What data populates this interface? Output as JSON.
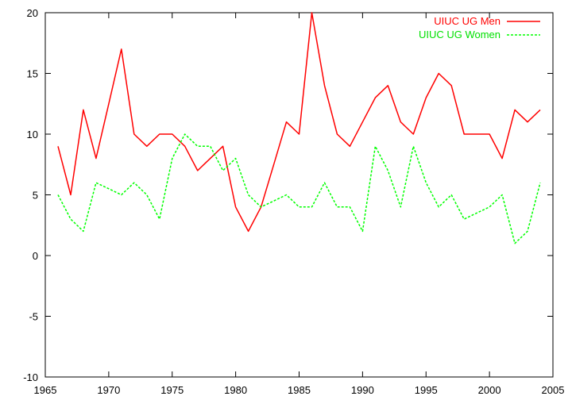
{
  "chart_data": {
    "type": "line",
    "title": "",
    "xlabel": "",
    "ylabel": "",
    "xlim": [
      1965,
      2005
    ],
    "ylim": [
      -10,
      20
    ],
    "x_ticks": [
      "1965",
      "1970",
      "1975",
      "1980",
      "1985",
      "1990",
      "1995",
      "2000",
      "2005"
    ],
    "y_ticks": [
      "20",
      "15",
      "10",
      "5",
      "0",
      "-5",
      "-10"
    ],
    "grid": false,
    "legend_position": "top-right",
    "x": [
      1966,
      1967,
      1968,
      1969,
      1970,
      1971,
      1972,
      1973,
      1974,
      1975,
      1976,
      1977,
      1978,
      1979,
      1980,
      1981,
      1982,
      1983,
      1984,
      1985,
      1986,
      1987,
      1988,
      1989,
      1990,
      1991,
      1992,
      1993,
      1994,
      1995,
      1996,
      1997,
      1998,
      1999,
      2000,
      2001,
      2002,
      2003,
      2004
    ],
    "series": [
      {
        "name": "UIUC UG Men",
        "color": "#ff0000",
        "dash": "solid",
        "values": [
          9,
          5,
          12,
          8,
          12.5,
          17,
          10,
          9,
          10,
          10,
          9,
          7,
          8,
          9,
          4,
          2,
          4,
          7.5,
          11,
          10,
          20,
          14,
          10,
          9,
          11,
          13,
          14,
          11,
          10,
          13,
          15,
          14,
          10,
          10,
          10,
          8,
          12,
          11,
          12
        ]
      },
      {
        "name": "UIUC UG Women",
        "color": "#00ff00",
        "dash": "dashed",
        "values": [
          5,
          3,
          2,
          6,
          5.5,
          5,
          6,
          5,
          3,
          8,
          10,
          9,
          9,
          7,
          8,
          5,
          4,
          4.5,
          5,
          4,
          4,
          6,
          4,
          4,
          2,
          9,
          7,
          4,
          9,
          6,
          4,
          5,
          3,
          3.5,
          4,
          5,
          1,
          2,
          6
        ]
      }
    ]
  }
}
